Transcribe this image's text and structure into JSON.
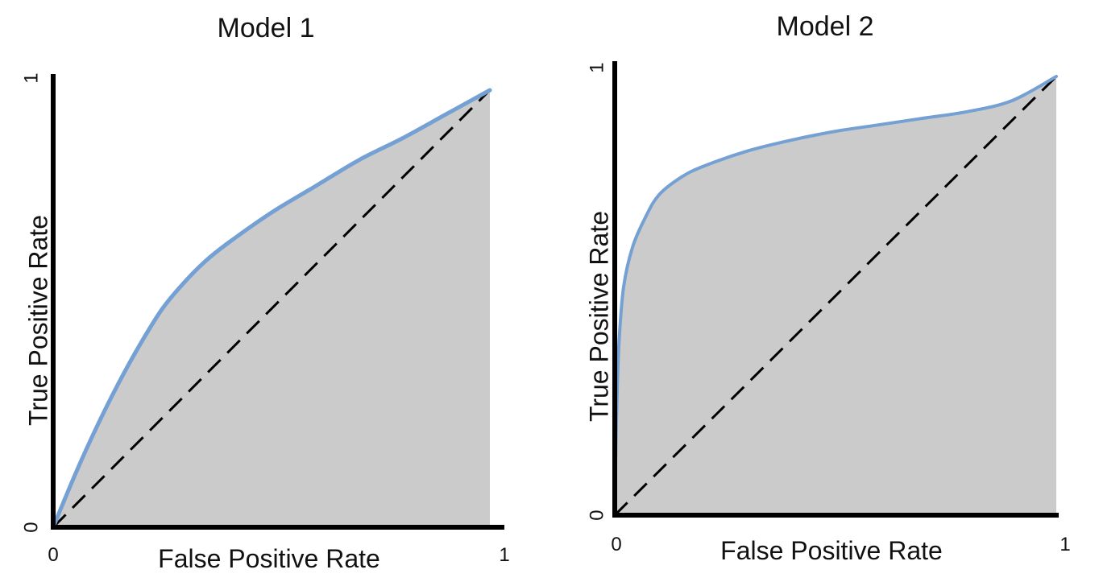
{
  "colors": {
    "roc_curve": "#74a0d4",
    "area_fill": "#cbcbcb",
    "axis": "#000000",
    "diagonal": "#000000",
    "background": "#ffffff"
  },
  "chart_data": [
    {
      "type": "area",
      "title": "Model 1",
      "xlabel": "False Positive Rate",
      "ylabel": "True Positive Rate",
      "x_ticks": [
        "0",
        "1"
      ],
      "y_ticks": [
        "0",
        "1"
      ],
      "xlim": [
        0,
        1
      ],
      "ylim": [
        0,
        1
      ],
      "grid": false,
      "series": [
        {
          "x": [
            0,
            0.05,
            0.1,
            0.15,
            0.2,
            0.25,
            0.3,
            0.35,
            0.4,
            0.5,
            0.6,
            0.7,
            0.8,
            0.9,
            1.0
          ],
          "y": [
            0,
            0.12,
            0.23,
            0.33,
            0.42,
            0.5,
            0.56,
            0.61,
            0.65,
            0.72,
            0.78,
            0.84,
            0.89,
            0.945,
            1.0
          ]
        }
      ],
      "reference_line": {
        "x": [
          0,
          1
        ],
        "y": [
          0,
          1
        ],
        "style": "dashed"
      }
    },
    {
      "type": "area",
      "title": "Model 2",
      "xlabel": "False Positive Rate",
      "ylabel": "True Positive Rate",
      "x_ticks": [
        "0",
        "1"
      ],
      "y_ticks": [
        "0",
        "1"
      ],
      "xlim": [
        0,
        1
      ],
      "ylim": [
        0,
        1
      ],
      "grid": false,
      "series": [
        {
          "x": [
            0,
            0.002,
            0.005,
            0.01,
            0.02,
            0.04,
            0.07,
            0.1,
            0.15,
            0.2,
            0.3,
            0.4,
            0.5,
            0.6,
            0.7,
            0.8,
            0.9,
            1.0
          ],
          "y": [
            0,
            0.13,
            0.27,
            0.4,
            0.52,
            0.61,
            0.68,
            0.73,
            0.77,
            0.795,
            0.83,
            0.855,
            0.875,
            0.89,
            0.905,
            0.92,
            0.945,
            1.0
          ]
        }
      ],
      "reference_line": {
        "x": [
          0,
          1
        ],
        "y": [
          0,
          1
        ],
        "style": "dashed"
      }
    }
  ]
}
